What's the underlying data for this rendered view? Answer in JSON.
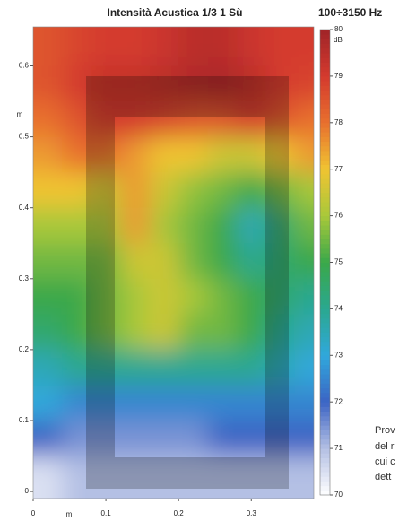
{
  "chart_data": {
    "type": "heatmap",
    "title": "Intensità Acustica 1/3 1 Sù",
    "subtitle": "100÷3150 Hz",
    "x_label": "m",
    "y_label": "m",
    "xlim": [
      0,
      0.386
    ],
    "ylim": [
      -0.01,
      0.655
    ],
    "xticks": [
      0,
      0.1,
      0.2,
      0.3
    ],
    "yticks": [
      0,
      0.1,
      0.2,
      0.3,
      0.4,
      0.5,
      0.6
    ],
    "x": [
      0.02,
      0.06,
      0.1,
      0.14,
      0.18,
      0.22,
      0.26,
      0.3,
      0.34,
      0.38
    ],
    "y": [
      0.625,
      0.575,
      0.525,
      0.475,
      0.425,
      0.375,
      0.325,
      0.275,
      0.225,
      0.175,
      0.125,
      0.075,
      0.025
    ],
    "z": [
      [
        78.5,
        78.8,
        79,
        79,
        79.2,
        79.5,
        79.5,
        79.2,
        79,
        79
      ],
      [
        78.5,
        79,
        79.3,
        79.3,
        79.5,
        79.7,
        79.8,
        79.5,
        79,
        78.8
      ],
      [
        78,
        78.5,
        79,
        79,
        78.8,
        78.5,
        78.5,
        79,
        78.5,
        78
      ],
      [
        77.5,
        78,
        78,
        77.5,
        77,
        77,
        76.5,
        76.5,
        77,
        77.5
      ],
      [
        77,
        77,
        76.5,
        77.5,
        76.5,
        75.8,
        75.5,
        75,
        75.5,
        76
      ],
      [
        76,
        76,
        76,
        77.5,
        76,
        75.5,
        75,
        73.5,
        74.5,
        75.5
      ],
      [
        75.5,
        75.5,
        75.5,
        76.5,
        76.5,
        75.5,
        75,
        74,
        74.5,
        75
      ],
      [
        75,
        75,
        75.5,
        76,
        76.5,
        76,
        75.5,
        75,
        74.5,
        74
      ],
      [
        74.5,
        75,
        75.5,
        76,
        76.5,
        75.5,
        75.5,
        75,
        74,
        73.5
      ],
      [
        73.5,
        74,
        74,
        74,
        74,
        74,
        74,
        74,
        73.5,
        73
      ],
      [
        73,
        72.5,
        72.5,
        72.5,
        72.5,
        72.5,
        72.5,
        72.5,
        72.5,
        72.5
      ],
      [
        72,
        71.5,
        71.5,
        71.5,
        71.5,
        71.5,
        72,
        72,
        72,
        72
      ],
      [
        70.5,
        71,
        71,
        71,
        71,
        71,
        71,
        71,
        71,
        71
      ]
    ],
    "colorbar_label": "dB",
    "zlim": [
      70,
      80
    ],
    "zticks": [
      70,
      71,
      72,
      73,
      74,
      75,
      76,
      77,
      78,
      79,
      80
    ],
    "colors": [
      "#ffffff",
      "#b4c0e4",
      "#3c64c4",
      "#30a8dc",
      "#2aa890",
      "#3aa84a",
      "#a8c83a",
      "#f0c432",
      "#e8702e",
      "#d43a2e",
      "#a02428"
    ]
  },
  "side_text": [
    "Prov",
    "del r",
    "cui c",
    "dett"
  ]
}
